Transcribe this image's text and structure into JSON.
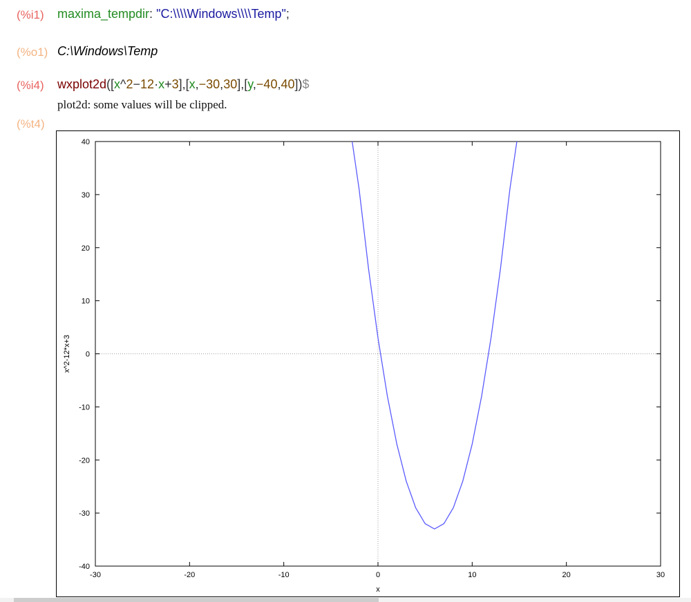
{
  "cells": {
    "i1": {
      "label": "(%i1)",
      "fn": "maxima_tempdir",
      "sep": ": ",
      "str": "\"C:\\\\\\\\Windows\\\\\\\\Temp\"",
      "end": ";"
    },
    "o1": {
      "label": "(%o1)",
      "value": "C:\\Windows\\Temp"
    },
    "i4": {
      "label": "(%i4)",
      "fn": "wxplot2d",
      "t1": "([",
      "t2": "x",
      "t3": "^",
      "t4": "2",
      "t5": "−",
      "t6": "12",
      "t7": "·",
      "t8": "x",
      "t9": "+",
      "t10": "3",
      "t11": "],[",
      "t12": "x",
      "t13": ",",
      "t14": "−30",
      "t15": ",",
      "t16": "30",
      "t17": "],[",
      "t18": "y",
      "t19": ",",
      "t20": "−40",
      "t21": ",",
      "t22": "40",
      "t23": "])",
      "t24": "$"
    },
    "t4": {
      "label": "(%t4)",
      "message": "plot2d: some values will be clipped."
    }
  },
  "chart_data": {
    "type": "line",
    "title": "",
    "xlabel": "x",
    "ylabel": "x^2-12*x+3",
    "xlim": [
      -30,
      30
    ],
    "ylim": [
      -40,
      40
    ],
    "xticks": [
      -30,
      -20,
      -10,
      0,
      10,
      20,
      30
    ],
    "yticks": [
      -40,
      -30,
      -20,
      -10,
      0,
      10,
      20,
      30,
      40
    ],
    "zero_axes": true,
    "series": [
      {
        "expression": "x^2-12*x+3",
        "color": "#5b5bff",
        "x": [
          -2.74,
          -2,
          -1,
          0,
          1,
          2,
          3,
          4,
          5,
          6,
          7,
          8,
          9,
          10,
          11,
          12,
          13,
          14,
          14.74
        ],
        "y": [
          40,
          31,
          16,
          3,
          -8,
          -17,
          -24,
          -29,
          -32,
          -33,
          -32,
          -29,
          -24,
          -17,
          -8,
          3,
          16,
          31,
          40
        ]
      }
    ]
  }
}
